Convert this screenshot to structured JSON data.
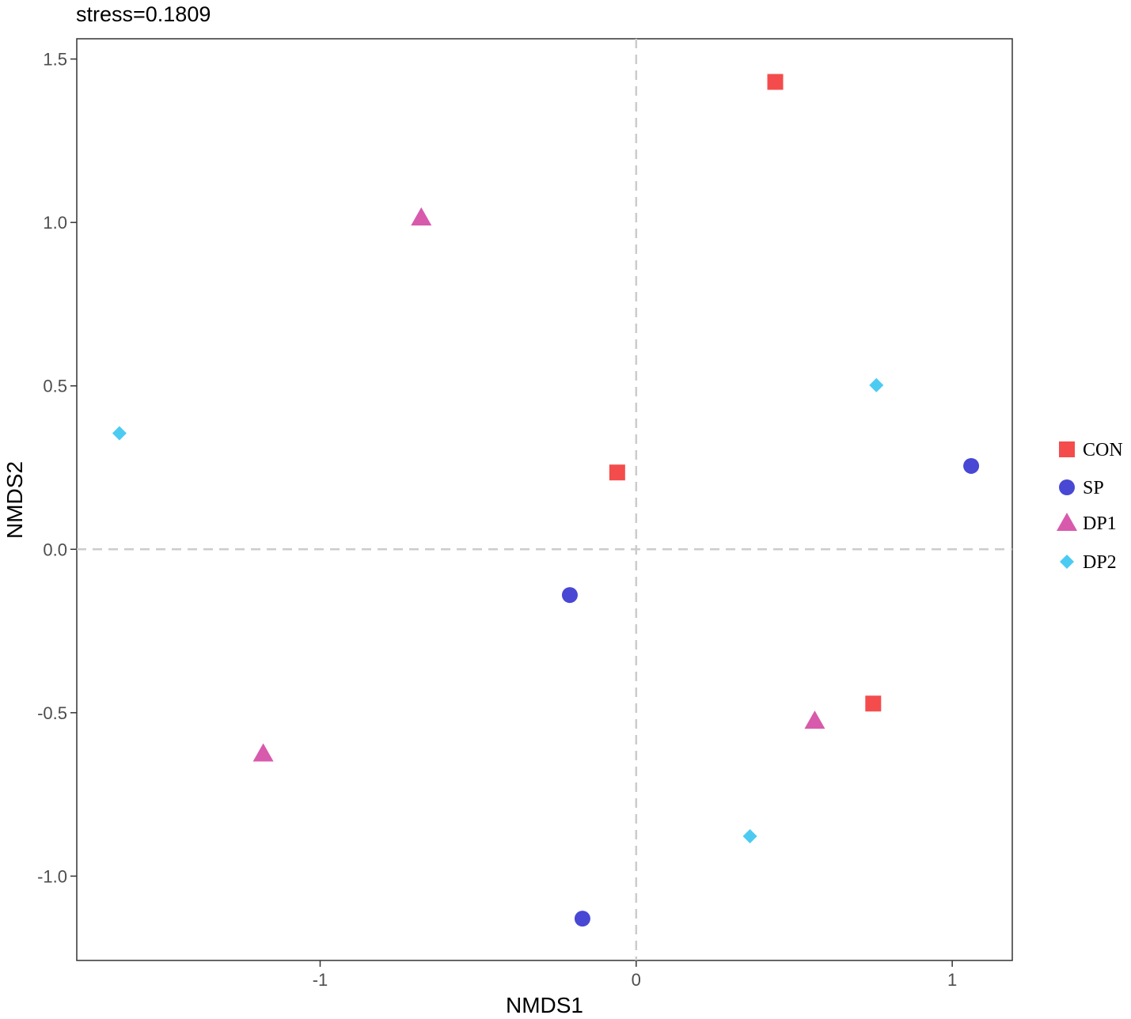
{
  "chart_data": {
    "type": "scatter",
    "title": "stress=0.1809",
    "xlabel": "NMDS1",
    "ylabel": "NMDS2",
    "xlim": [
      -1.77,
      1.19
    ],
    "ylim": [
      -1.258,
      1.562
    ],
    "x_ticks": [
      -1,
      0,
      1
    ],
    "x_tick_labels": [
      "-1",
      "0",
      "1"
    ],
    "y_ticks": [
      -1.0,
      -0.5,
      0.0,
      0.5,
      1.0,
      1.5
    ],
    "y_tick_labels": [
      "-1.0",
      "-0.5",
      "0.0",
      "0.5",
      "1.0",
      "1.5"
    ],
    "reference_lines": {
      "x": 0,
      "y": 0,
      "style": "dashed"
    },
    "grid": false,
    "legend_position": "right",
    "series": [
      {
        "name": "CON",
        "shape": "square",
        "color": "#f44c4c",
        "points": [
          {
            "x": 0.44,
            "y": 1.43
          },
          {
            "x": -0.06,
            "y": 0.235
          },
          {
            "x": 0.75,
            "y": -0.472
          }
        ]
      },
      {
        "name": "SP",
        "shape": "circle",
        "color": "#4848d4",
        "points": [
          {
            "x": 1.06,
            "y": 0.255
          },
          {
            "x": -0.21,
            "y": -0.14
          },
          {
            "x": -0.17,
            "y": -1.13
          }
        ]
      },
      {
        "name": "DP1",
        "shape": "triangle",
        "color": "#d85aac",
        "points": [
          {
            "x": -0.68,
            "y": 1.015
          },
          {
            "x": -1.18,
            "y": -0.625
          },
          {
            "x": 0.565,
            "y": -0.525
          }
        ]
      },
      {
        "name": "DP2",
        "shape": "diamond",
        "color": "#4ccbf2",
        "points": [
          {
            "x": -1.635,
            "y": 0.355
          },
          {
            "x": 0.76,
            "y": 0.502
          },
          {
            "x": 0.36,
            "y": -0.878
          }
        ]
      }
    ]
  }
}
